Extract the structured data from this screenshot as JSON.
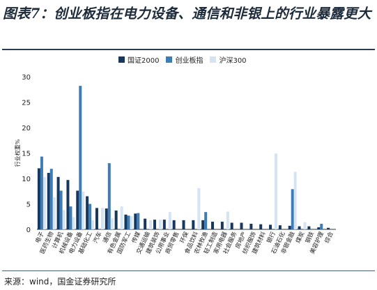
{
  "header": {
    "title": "图表7：创业板指在电力设备、通信和非银上的行业暴露更大"
  },
  "footer": {
    "source": "来源：wind，国金证券研究所"
  },
  "chart_data": {
    "type": "bar",
    "ylabel": "行业权重%",
    "ylim": [
      0,
      30
    ],
    "yticks": [
      0,
      5,
      10,
      15,
      20,
      25,
      30
    ],
    "legend_position": "top-center",
    "categories": [
      "电子",
      "医药生物",
      "计算机",
      "机械设备",
      "电力设备",
      "基础化工",
      "汽车",
      "通信",
      "有色金属",
      "国防军工",
      "传媒",
      "交通运输",
      "建筑装饰",
      "公用事业",
      "商贸零售",
      "环保",
      "食品饮料",
      "农林牧渔",
      "轻工制造",
      "家用电器",
      "社会服务",
      "房地产",
      "纺织服饰",
      "建筑材料",
      "银行",
      "石油石化",
      "非银金融",
      "煤炭",
      "钢铁",
      "美容护理",
      "综合"
    ],
    "series": [
      {
        "name": "国证2000",
        "color": "#17385c",
        "values": [
          12.0,
          11.1,
          10.3,
          9.7,
          7.6,
          6.5,
          4.2,
          4.1,
          3.7,
          2.9,
          3.1,
          2.1,
          1.9,
          1.9,
          1.8,
          1.8,
          1.8,
          1.8,
          1.5,
          1.5,
          1.3,
          1.3,
          1.1,
          1.0,
          0.9,
          0.8,
          0.7,
          0.6,
          0.6,
          0.4,
          0.3
        ]
      },
      {
        "name": "创业板指",
        "color": "#3e7cb6",
        "values": [
          14.3,
          11.9,
          7.6,
          4.5,
          28.2,
          5.0,
          0.0,
          13.0,
          0.0,
          2.7,
          3.2,
          0.0,
          0.0,
          0.0,
          0.0,
          0.0,
          0.0,
          3.4,
          0.0,
          0.0,
          0.0,
          0.0,
          0.0,
          0.0,
          0.0,
          0.0,
          7.9,
          0.0,
          0.0,
          1.1,
          0.0
        ]
      },
      {
        "name": "沪深300",
        "color": "#d4e4f3",
        "values": [
          10.3,
          6.3,
          3.8,
          2.4,
          7.4,
          1.8,
          4.2,
          2.2,
          4.5,
          2.6,
          0.0,
          1.8,
          1.9,
          3.4,
          0.0,
          0.0,
          8.1,
          0.0,
          0.0,
          3.5,
          0.0,
          0.0,
          0.0,
          0.0,
          14.9,
          0.0,
          11.3,
          1.4,
          0.0,
          0.0,
          0.0
        ]
      }
    ]
  }
}
